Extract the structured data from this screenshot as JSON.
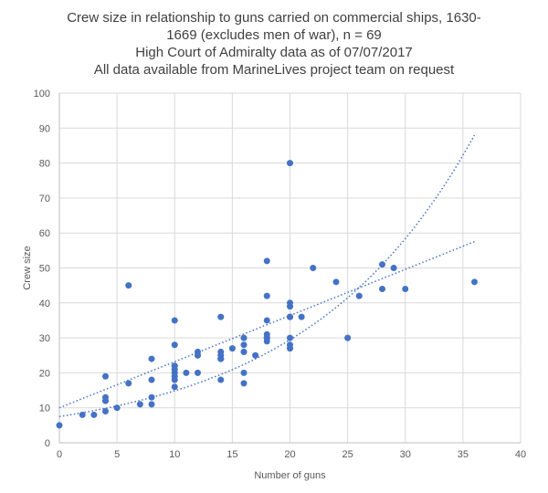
{
  "chart_data": {
    "type": "scatter",
    "title_lines": [
      "Crew size in relationship to guns carried on commercial ships, 1630-",
      "1669 (excludes men of war), n = 69",
      "High Court of Admiralty data as of 07/07/2017",
      "All data available from MarineLives project team on request"
    ],
    "xlabel": "Number of guns",
    "ylabel": "Crew size",
    "xlim": [
      0,
      40
    ],
    "ylim": [
      0,
      100
    ],
    "xticks": [
      0,
      5,
      10,
      15,
      20,
      25,
      30,
      35,
      40
    ],
    "yticks": [
      0,
      10,
      20,
      30,
      40,
      50,
      60,
      70,
      80,
      90,
      100
    ],
    "grid": true,
    "point_color": "#4472c4",
    "points": [
      [
        0,
        5
      ],
      [
        2,
        8
      ],
      [
        3,
        8
      ],
      [
        4,
        9
      ],
      [
        4,
        12
      ],
      [
        4,
        13
      ],
      [
        4,
        19
      ],
      [
        5,
        10
      ],
      [
        6,
        17
      ],
      [
        6,
        45
      ],
      [
        7,
        11
      ],
      [
        8,
        11
      ],
      [
        8,
        13
      ],
      [
        8,
        18
      ],
      [
        8,
        24
      ],
      [
        10,
        16
      ],
      [
        10,
        18
      ],
      [
        10,
        19
      ],
      [
        10,
        21
      ],
      [
        10,
        22
      ],
      [
        10,
        28
      ],
      [
        10,
        35
      ],
      [
        11,
        20
      ],
      [
        12,
        20
      ],
      [
        12,
        25
      ],
      [
        12,
        26
      ],
      [
        14,
        18
      ],
      [
        14,
        24
      ],
      [
        14,
        25
      ],
      [
        14,
        26
      ],
      [
        14,
        36
      ],
      [
        15,
        27
      ],
      [
        16,
        17
      ],
      [
        16,
        20
      ],
      [
        16,
        26
      ],
      [
        16,
        28
      ],
      [
        16,
        30
      ],
      [
        17,
        25
      ],
      [
        18,
        29
      ],
      [
        18,
        30
      ],
      [
        18,
        31
      ],
      [
        18,
        35
      ],
      [
        18,
        42
      ],
      [
        18,
        52
      ],
      [
        20,
        27
      ],
      [
        20,
        28
      ],
      [
        20,
        30
      ],
      [
        20,
        36
      ],
      [
        20,
        39
      ],
      [
        20,
        40
      ],
      [
        20,
        80
      ],
      [
        21,
        36
      ],
      [
        22,
        50
      ],
      [
        24,
        46
      ],
      [
        25,
        30
      ],
      [
        26,
        42
      ],
      [
        28,
        44
      ],
      [
        28,
        51
      ],
      [
        29,
        50
      ],
      [
        30,
        44
      ],
      [
        36,
        46
      ],
      [
        10,
        20
      ],
      [
        18,
        30
      ],
      [
        16,
        26
      ],
      [
        20,
        36
      ],
      [
        14,
        24
      ],
      [
        4,
        12
      ],
      [
        10,
        22
      ],
      [
        12,
        25
      ]
    ],
    "trendlines": [
      {
        "type": "linear",
        "intercept": 10,
        "slope": 1.32,
        "x_range": [
          0,
          36
        ]
      },
      {
        "type": "exponential",
        "a": 7.5,
        "b": 0.0684,
        "x_range": [
          0,
          36
        ]
      }
    ]
  }
}
